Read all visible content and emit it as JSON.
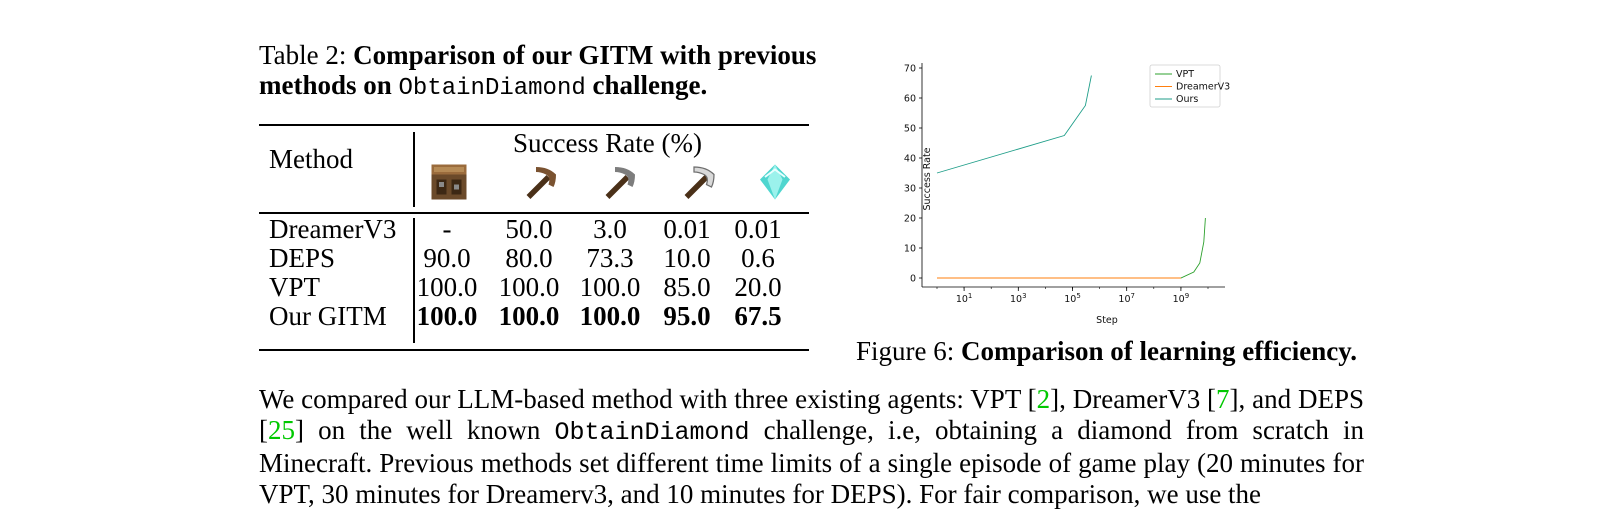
{
  "table": {
    "caption_prefix": "Table 2:",
    "caption_bold_1": "Comparison of our GITM with previous methods on",
    "caption_mono": "ObtainDiamond",
    "caption_bold_2": "challenge.",
    "header_method": "Method",
    "header_success": "Success Rate (%)",
    "icons": [
      "crafting-table-icon",
      "wooden-pickaxe-icon",
      "stone-pickaxe-icon",
      "iron-pickaxe-icon",
      "diamond-icon"
    ],
    "rows": [
      {
        "method": "DreamerV3",
        "values": [
          "-",
          "50.0",
          "3.0",
          "0.01",
          "0.01"
        ]
      },
      {
        "method": "DEPS",
        "values": [
          "90.0",
          "80.0",
          "73.3",
          "10.0",
          "0.6"
        ]
      },
      {
        "method": "VPT",
        "values": [
          "100.0",
          "100.0",
          "100.0",
          "85.0",
          "20.0"
        ]
      },
      {
        "method": "Our GITM",
        "values": [
          "100.0",
          "100.0",
          "100.0",
          "95.0",
          "67.5"
        ]
      }
    ]
  },
  "figure": {
    "caption_prefix": "Figure 6:",
    "caption_bold": "Comparison of learning efficiency.",
    "y_ticks": [
      "0",
      "10",
      "20",
      "30",
      "40",
      "50",
      "60",
      "70"
    ],
    "x_ticks": [
      {
        "base": "10",
        "exp": "1"
      },
      {
        "base": "10",
        "exp": "3"
      },
      {
        "base": "10",
        "exp": "5"
      },
      {
        "base": "10",
        "exp": "7"
      },
      {
        "base": "10",
        "exp": "9"
      }
    ]
  },
  "chart_data": {
    "type": "line",
    "xlabel": "Step",
    "ylabel": "Success Rate",
    "x_scale": "log",
    "xlim": [
      1,
      10000000000
    ],
    "ylim": [
      -3,
      71
    ],
    "legend_position": "top-right",
    "series": [
      {
        "name": "VPT",
        "color": "#2ca02c",
        "x": [
          1,
          1000000000,
          3000000000,
          5000000000,
          7000000000,
          8000000000
        ],
        "y": [
          0,
          0,
          2,
          5,
          12,
          20
        ]
      },
      {
        "name": "DreamerV3",
        "color": "#ff7f0e",
        "x": [
          1,
          1000000000
        ],
        "y": [
          0,
          0
        ]
      },
      {
        "name": "Ours",
        "color": "#1f9e89",
        "x": [
          1,
          50000,
          300000,
          500000
        ],
        "y": [
          35,
          47.5,
          57.5,
          67.5
        ]
      }
    ]
  },
  "body": {
    "seg1": "We compared our LLM-based method with three existing agents: VPT [",
    "cite1": "2",
    "seg2": "], DreamerV3 [",
    "cite2": "7",
    "seg3": "], and DEPS [",
    "cite3": "25",
    "seg4": "] on the well known ",
    "mono": "ObtainDiamond",
    "seg5": " challenge, i.e, obtaining a diamond from scratch in Minecraft. Previous methods set different time limits of a single episode of game play (20 minutes for VPT, 30 minutes for Dreamerv3, and 10 minutes for DEPS). For fair comparison, we use the"
  }
}
